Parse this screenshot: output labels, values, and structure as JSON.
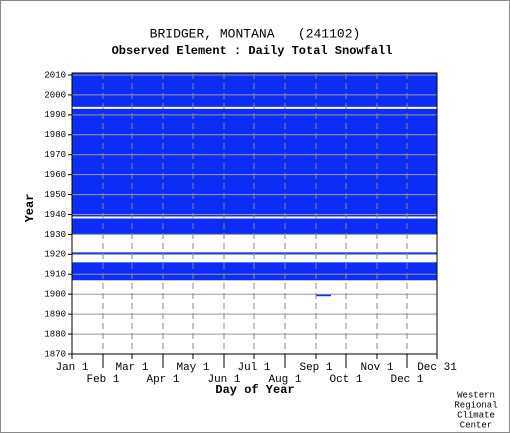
{
  "chart_data": {
    "type": "heatmap",
    "title": "BRIDGER, MONTANA   (241102)",
    "subtitle": "Observed Element : Daily Total Snowfall",
    "x_label": "Day of Year",
    "y_label": "Year",
    "credit": [
      "Western",
      "Regional",
      "Climate",
      "Center"
    ],
    "color": "#0b2df5",
    "grid": true,
    "xlim": [
      1,
      366
    ],
    "xticks": [
      {
        "value": 1,
        "label": "Jan 1"
      },
      {
        "value": 32,
        "label": "Feb 1"
      },
      {
        "value": 61,
        "label": "Mar 1"
      },
      {
        "value": 92,
        "label": "Apr 1"
      },
      {
        "value": 122,
        "label": "May 1"
      },
      {
        "value": 153,
        "label": "Jun 1"
      },
      {
        "value": 183,
        "label": "Jul 1"
      },
      {
        "value": 214,
        "label": "Aug 1"
      },
      {
        "value": 245,
        "label": "Sep 1"
      },
      {
        "value": 275,
        "label": "Oct 1"
      },
      {
        "value": 306,
        "label": "Nov 1"
      },
      {
        "value": 336,
        "label": "Dec 1"
      },
      {
        "value": 366,
        "label": "Dec 31"
      }
    ],
    "ylim": [
      1870,
      2011
    ],
    "yticks": [
      1870,
      1880,
      1890,
      1900,
      1910,
      1920,
      1930,
      1940,
      1950,
      1960,
      1970,
      1980,
      1990,
      2000,
      2010
    ],
    "blocks": [
      {
        "years": [
          1907,
          1916
        ],
        "days": [
          1,
          366
        ]
      },
      {
        "years": [
          1920,
          1921
        ],
        "days": [
          1,
          366
        ]
      },
      {
        "years": [
          1899,
          1900
        ],
        "days": [
          245,
          260
        ]
      },
      {
        "years": [
          1930,
          1938
        ],
        "days": [
          1,
          366
        ]
      },
      {
        "years": [
          1939,
          1993
        ],
        "days": [
          1,
          366
        ]
      },
      {
        "years": [
          1994,
          2011
        ],
        "days": [
          1,
          366
        ]
      }
    ]
  }
}
